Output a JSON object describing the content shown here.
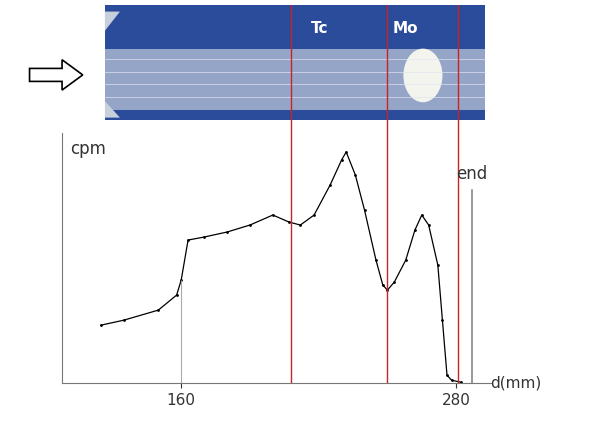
{
  "chart_data": {
    "type": "line",
    "x": [
      125,
      135,
      150,
      158,
      160,
      163,
      170,
      180,
      190,
      200,
      207,
      212,
      218,
      225,
      230,
      232,
      236,
      240,
      245,
      248,
      250,
      253,
      258,
      262,
      265,
      268,
      272,
      274,
      276,
      278,
      282
    ],
    "values": [
      58,
      63,
      73,
      88,
      103,
      143,
      146,
      151,
      158,
      168,
      161,
      158,
      168,
      198,
      223,
      231,
      208,
      173,
      123,
      98,
      93,
      101,
      123,
      153,
      168,
      158,
      118,
      63,
      8,
      3,
      1
    ],
    "color": "#000000",
    "marker": ".",
    "x_label": "d(mm)",
    "y_label": "cpm",
    "xlim": [
      108,
      295
    ],
    "ylim": [
      0,
      250
    ],
    "xticks": [
      160,
      280
    ],
    "yticks": [],
    "tick_labels": "x",
    "red_lines": {
      "values": [
        208,
        250,
        281
      ],
      "color": "#cc2222"
    },
    "end_line": {
      "value": 287,
      "label": "end",
      "color": "#888888"
    },
    "bands": [
      {
        "label": "Tc",
        "from": 208,
        "to": 250
      },
      {
        "label": "Mo",
        "from": 250,
        "to": 281
      }
    ]
  }
}
